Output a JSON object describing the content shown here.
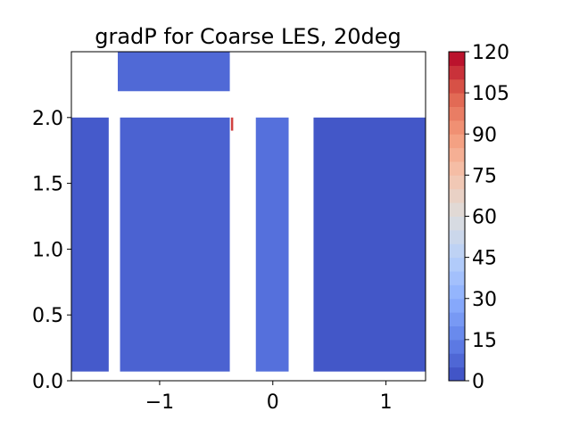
{
  "chart_data": {
    "type": "heatmap",
    "title": "gradP for Coarse LES, 20deg",
    "xlabel": "",
    "ylabel": "",
    "xlim": [
      -1.78,
      1.35
    ],
    "ylim": [
      0.0,
      2.5
    ],
    "x_ticks": [
      {
        "value": -1,
        "label": "−1"
      },
      {
        "value": 0,
        "label": "0"
      },
      {
        "value": 1,
        "label": "1"
      }
    ],
    "y_ticks": [
      {
        "value": 0.0,
        "label": "0.0"
      },
      {
        "value": 0.5,
        "label": "0.5"
      },
      {
        "value": 1.0,
        "label": "1.0"
      },
      {
        "value": 1.5,
        "label": "1.5"
      },
      {
        "value": 2.0,
        "label": "2.0"
      }
    ],
    "colorbar": {
      "range": [
        0,
        120
      ],
      "levels": 24,
      "colormap": "coolwarm",
      "ticks": [
        0,
        15,
        30,
        45,
        60,
        75,
        90,
        105,
        120
      ],
      "tick_labels": [
        "0",
        "15",
        "30",
        "45",
        "60",
        "75",
        "90",
        "105",
        "120"
      ]
    },
    "regions": [
      {
        "x": [
          -1.78,
          -1.45
        ],
        "y": [
          0.07,
          2.0
        ],
        "value": 4
      },
      {
        "x": [
          -1.35,
          -0.38
        ],
        "y": [
          0.07,
          2.0
        ],
        "value": 6
      },
      {
        "x": [
          -1.37,
          -0.38
        ],
        "y": [
          2.2,
          2.5
        ],
        "value": 8
      },
      {
        "x": [
          -0.37,
          -0.35
        ],
        "y": [
          1.9,
          2.0
        ],
        "value": 110
      },
      {
        "x": [
          -0.15,
          0.14
        ],
        "y": [
          0.07,
          2.0
        ],
        "value": 10
      },
      {
        "x": [
          0.36,
          1.35
        ],
        "y": [
          0.07,
          2.0
        ],
        "value": 3
      }
    ]
  }
}
